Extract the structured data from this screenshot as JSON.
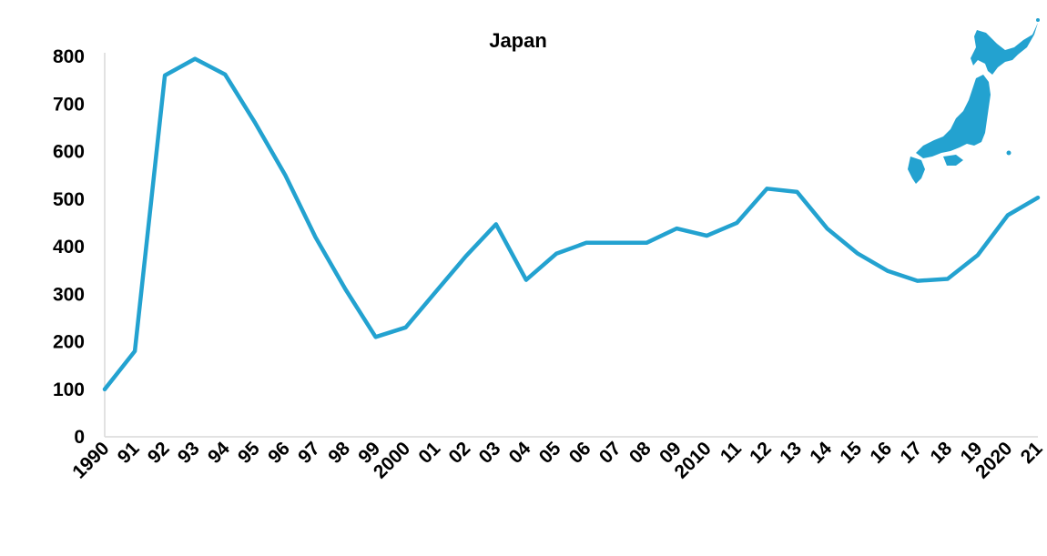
{
  "chart_data": {
    "type": "line",
    "title": "Japan",
    "xlabel": "",
    "ylabel": "",
    "ylim": [
      0,
      800
    ],
    "yticks": [
      "0",
      "100",
      "200",
      "300",
      "400",
      "500",
      "600",
      "700",
      "800"
    ],
    "categories": [
      "1990",
      "91",
      "92",
      "93",
      "94",
      "95",
      "96",
      "97",
      "98",
      "99",
      "2000",
      "01",
      "02",
      "03",
      "04",
      "05",
      "06",
      "07",
      "08",
      "09",
      "2010",
      "11",
      "12",
      "13",
      "14",
      "15",
      "16",
      "17",
      "18",
      "19",
      "2020",
      "21"
    ],
    "series": [
      {
        "values": [
          100,
          180,
          760,
          795,
          762,
          660,
          550,
          420,
          310,
          210,
          230,
          305,
          380,
          447,
          330,
          385,
          408,
          408,
          408,
          438,
          423,
          450,
          522,
          515,
          438,
          386,
          349,
          328,
          332,
          382,
          466,
          503
        ],
        "color": "#23a2d0"
      }
    ],
    "grid": false,
    "legend": "none",
    "decoration": "japan-map-icon",
    "decoration_color": "#23a2d0"
  }
}
